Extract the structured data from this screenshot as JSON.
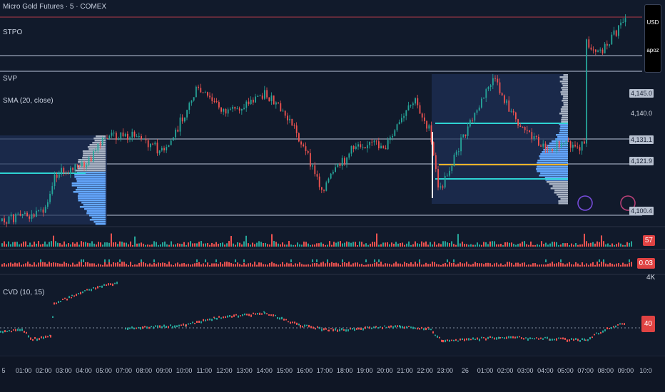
{
  "legend": {
    "symbol": "Micro Gold Futures · 5 · COMEX",
    "stpo": "STPO",
    "svp": "SVP",
    "sma": "SMA (20, close)",
    "cvd": "CVD (10, 15)"
  },
  "currency_panel": {
    "currency": "USD",
    "apoz": "apoz"
  },
  "price_tags": [
    "4,145.0",
    "4,140.0",
    "4,131.1",
    "4,121.9",
    "4,100.4"
  ],
  "badges": {
    "volume": "57",
    "delta": "0.03",
    "cvd": "40"
  },
  "cvd_scale": "4K",
  "time_axis": [
    "5",
    "01:00",
    "02:00",
    "03:00",
    "04:00",
    "05:00",
    "07:00",
    "08:00",
    "09:00",
    "10:00",
    "11:00",
    "12:00",
    "13:00",
    "14:00",
    "15:00",
    "16:00",
    "17:00",
    "18:00",
    "19:00",
    "20:00",
    "21:00",
    "22:00",
    "23:00",
    "26",
    "01:00",
    "02:00",
    "03:00",
    "04:00",
    "05:00",
    "07:00",
    "08:00",
    "09:00",
    "10:0"
  ],
  "colors": {
    "up": "#26a69a",
    "down": "#ef5350",
    "profile": "#64a8ff",
    "poc": "#f0b429",
    "value_area": "#2ed3d3",
    "background": "#111a2b"
  }
}
